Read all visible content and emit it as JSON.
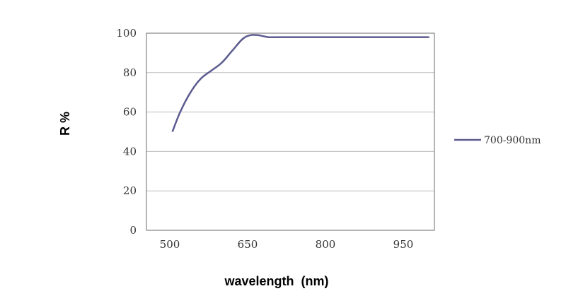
{
  "chart_data": {
    "type": "line",
    "title": "",
    "xlabel": "wavelength  (nm)",
    "ylabel": "R %",
    "xlim": [
      455,
      1010
    ],
    "ylim": [
      0,
      100
    ],
    "x_ticks": [
      500,
      650,
      800,
      950
    ],
    "y_ticks": [
      0,
      20,
      40,
      60,
      80,
      100
    ],
    "grid": "horizontal",
    "legend_position": "right",
    "series": [
      {
        "name": "700-900nm",
        "color": "#5b5b8f",
        "x": [
          505,
          520,
          540,
          560,
          580,
          600,
          620,
          640,
          655,
          670,
          690,
          710,
          800,
          900,
          1000
        ],
        "y": [
          50,
          60,
          70,
          77,
          81,
          85,
          91,
          97,
          99,
          99,
          98,
          98,
          98,
          98,
          98
        ]
      }
    ]
  }
}
